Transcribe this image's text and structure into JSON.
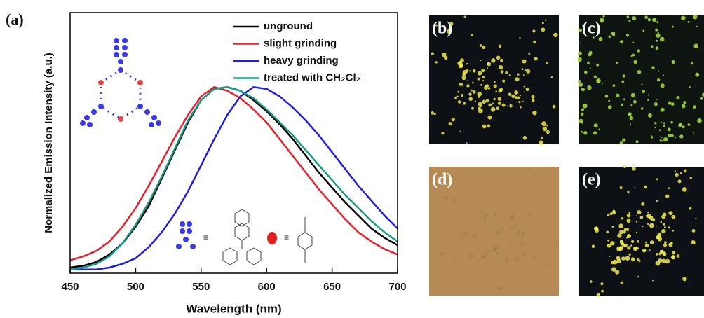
{
  "chart_data": {
    "type": "line",
    "panel_label": "(a)",
    "x_label": "Wavelength (nm)",
    "y_label": "Normalized Emission Intensity (a.u.)",
    "x": [
      450,
      460,
      470,
      480,
      490,
      500,
      510,
      520,
      530,
      540,
      550,
      560,
      570,
      580,
      590,
      600,
      610,
      620,
      630,
      640,
      650,
      660,
      670,
      680,
      690,
      700
    ],
    "series": [
      {
        "name": "unground",
        "color": "#000000",
        "values": [
          0.03,
          0.04,
          0.06,
          0.1,
          0.16,
          0.25,
          0.36,
          0.51,
          0.66,
          0.81,
          0.93,
          0.99,
          1.0,
          0.98,
          0.93,
          0.87,
          0.8,
          0.72,
          0.63,
          0.54,
          0.46,
          0.38,
          0.31,
          0.24,
          0.19,
          0.15
        ]
      },
      {
        "name": "slight grinding",
        "color": "#e8202a",
        "values": [
          0.07,
          0.09,
          0.12,
          0.17,
          0.25,
          0.35,
          0.47,
          0.6,
          0.73,
          0.85,
          0.95,
          1.0,
          0.98,
          0.94,
          0.88,
          0.81,
          0.72,
          0.63,
          0.54,
          0.45,
          0.37,
          0.29,
          0.22,
          0.17,
          0.13,
          0.1
        ]
      },
      {
        "name": "heavy grinding",
        "color": "#1f1fe0",
        "values": [
          0.02,
          0.02,
          0.02,
          0.03,
          0.05,
          0.08,
          0.14,
          0.22,
          0.32,
          0.44,
          0.58,
          0.72,
          0.85,
          0.95,
          1.0,
          0.99,
          0.95,
          0.89,
          0.82,
          0.74,
          0.65,
          0.56,
          0.47,
          0.39,
          0.31,
          0.24
        ]
      },
      {
        "name": "treated with CH₂Cl₂",
        "color": "#1a9a8a",
        "values": [
          0.02,
          0.03,
          0.05,
          0.09,
          0.16,
          0.26,
          0.38,
          0.52,
          0.67,
          0.82,
          0.93,
          0.99,
          1.0,
          0.98,
          0.94,
          0.88,
          0.81,
          0.74,
          0.66,
          0.58,
          0.5,
          0.42,
          0.35,
          0.28,
          0.22,
          0.17
        ]
      }
    ],
    "xlim": [
      450,
      700
    ],
    "xticks": [
      450,
      500,
      550,
      600,
      650,
      700
    ],
    "ylim": [
      0,
      1.4
    ],
    "legend": "upper right"
  },
  "photos": [
    {
      "label": "(b)",
      "background": "#0d1014",
      "dots": "#f0e84a"
    },
    {
      "label": "(c)",
      "background": "#0e1410",
      "dots": "#a8e040"
    },
    {
      "label": "(d)",
      "background": "#b58a55",
      "dots": "#9c7444"
    },
    {
      "label": "(e)",
      "background": "#0d1014",
      "dots": "#f2ec50"
    }
  ]
}
